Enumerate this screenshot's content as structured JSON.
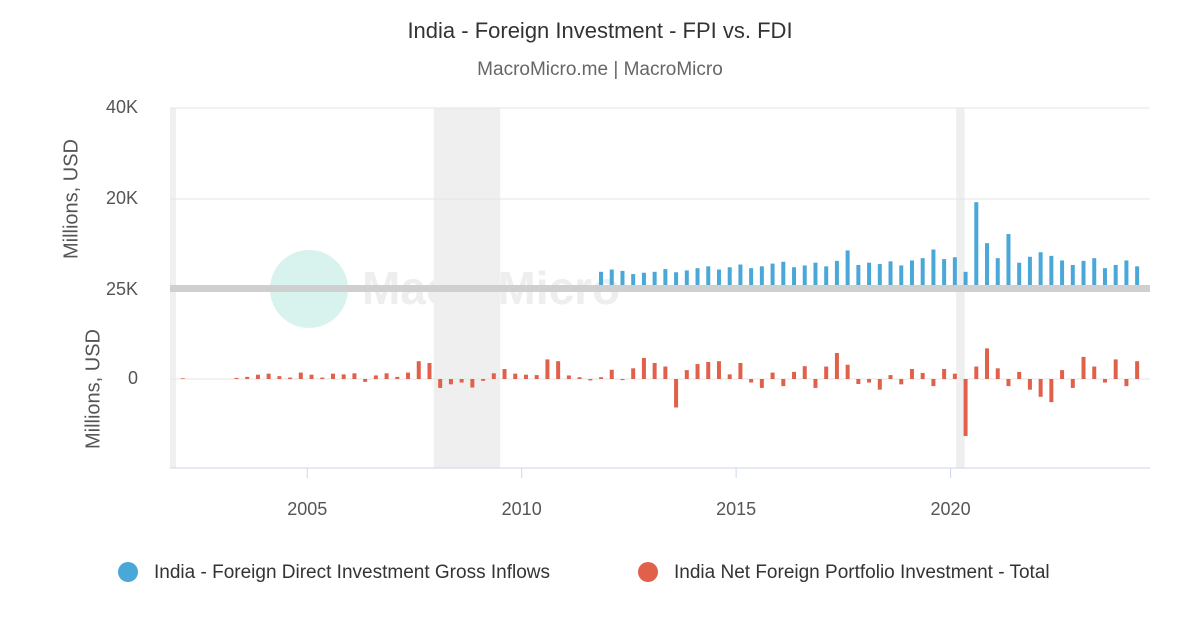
{
  "chart_data": {
    "type": "bar",
    "title": "India - Foreign Investment - FPI vs. FDI",
    "subtitle": "MacroMicro.me | MacroMicro",
    "watermark": "MacroMicro",
    "xlim": [
      2001.8,
      2024.65
    ],
    "xticks": [
      2005,
      2010,
      2015,
      2020
    ],
    "shaded_periods": [
      [
        2007.95,
        2009.5
      ],
      [
        2020.13,
        2020.33
      ]
    ],
    "panels": [
      {
        "ylabel": "Millions, USD",
        "ylim": [
          0,
          40000
        ],
        "yticks": [
          {
            "value": 20000,
            "label": "20K"
          },
          {
            "value": 40000,
            "label": "40K"
          }
        ],
        "grid": true,
        "series": [
          {
            "name": "India - Foreign Direct Investment Gross Inflows",
            "color": "#4aa8d8",
            "x": [
              2011.85,
              2012.1,
              2012.35,
              2012.6,
              2012.85,
              2013.1,
              2013.35,
              2013.6,
              2013.85,
              2014.1,
              2014.35,
              2014.6,
              2014.85,
              2015.1,
              2015.35,
              2015.6,
              2015.85,
              2016.1,
              2016.35,
              2016.6,
              2016.85,
              2017.1,
              2017.35,
              2017.6,
              2017.85,
              2018.1,
              2018.35,
              2018.6,
              2018.85,
              2019.1,
              2019.35,
              2019.6,
              2019.85,
              2020.1,
              2020.35,
              2020.6,
              2020.85,
              2021.1,
              2021.35,
              2021.6,
              2021.85,
              2022.1,
              2022.35,
              2022.6,
              2022.85,
              2023.1,
              2023.35,
              2023.6,
              2023.85,
              2024.1,
              2024.35
            ],
            "values": [
              4000,
              4500,
              4200,
              3500,
              3800,
              4000,
              4600,
              3900,
              4300,
              4800,
              5200,
              4500,
              5000,
              5600,
              4800,
              5200,
              5800,
              6200,
              5000,
              5400,
              6000,
              5200,
              6400,
              8700,
              5500,
              6000,
              5700,
              6300,
              5400,
              6500,
              7000,
              8900,
              6800,
              7200,
              4000,
              19300,
              10300,
              7000,
              12300,
              6000,
              7300,
              8300,
              7500,
              6500,
              5500,
              6400,
              7000,
              4800,
              5500,
              6500,
              5200
            ]
          }
        ]
      },
      {
        "ylabel": "Millions, USD",
        "ylim": [
          -25000,
          25000
        ],
        "yticks": [
          0,
          {
            "value": 25000,
            "label": "25K"
          }
        ],
        "grid": true,
        "series": [
          {
            "name": "India Net Foreign Portfolio Investment - Total",
            "color": "#e0604a",
            "x": [
              2002.1,
              2003.35,
              2003.6,
              2003.85,
              2004.1,
              2004.35,
              2004.6,
              2004.85,
              2005.1,
              2005.35,
              2005.6,
              2005.85,
              2006.1,
              2006.35,
              2006.6,
              2006.85,
              2007.1,
              2007.35,
              2007.6,
              2007.85,
              2008.1,
              2008.35,
              2008.6,
              2008.85,
              2009.1,
              2009.35,
              2009.6,
              2009.85,
              2010.1,
              2010.35,
              2010.6,
              2010.85,
              2011.1,
              2011.35,
              2011.6,
              2011.85,
              2012.1,
              2012.35,
              2012.6,
              2012.85,
              2013.1,
              2013.35,
              2013.6,
              2013.85,
              2014.1,
              2014.35,
              2014.6,
              2014.85,
              2015.1,
              2015.35,
              2015.6,
              2015.85,
              2016.1,
              2016.35,
              2016.6,
              2016.85,
              2017.1,
              2017.35,
              2017.6,
              2017.85,
              2018.1,
              2018.35,
              2018.6,
              2018.85,
              2019.1,
              2019.35,
              2019.6,
              2019.85,
              2020.1,
              2020.35,
              2020.6,
              2020.85,
              2021.1,
              2021.35,
              2021.6,
              2021.85,
              2022.1,
              2022.35,
              2022.6,
              2022.85,
              2023.1,
              2023.35,
              2023.6,
              2023.85,
              2024.1,
              2024.35
            ],
            "values": [
              200,
              300,
              600,
              1200,
              1500,
              800,
              400,
              1800,
              1200,
              400,
              1500,
              1300,
              1600,
              -800,
              1000,
              1600,
              600,
              1800,
              5000,
              4500,
              -2500,
              -1500,
              -1000,
              -2400,
              -500,
              1600,
              2800,
              1500,
              1200,
              1100,
              5500,
              5000,
              1000,
              500,
              -400,
              500,
              2600,
              -300,
              3000,
              5900,
              4500,
              3500,
              -8000,
              2500,
              4200,
              4800,
              5000,
              1300,
              4500,
              -1000,
              -2500,
              1800,
              -2000,
              2000,
              3600,
              -2500,
              3500,
              7300,
              4000,
              -1400,
              -1000,
              -3000,
              1100,
              -1500,
              2800,
              1700,
              -2000,
              2800,
              1500,
              -16000,
              3500,
              8600,
              3000,
              -2000,
              2000,
              -3000,
              -5000,
              -6500,
              2500,
              -2500,
              6200,
              3500,
              -1000,
              5500,
              -2000,
              5000
            ]
          }
        ]
      }
    ]
  }
}
